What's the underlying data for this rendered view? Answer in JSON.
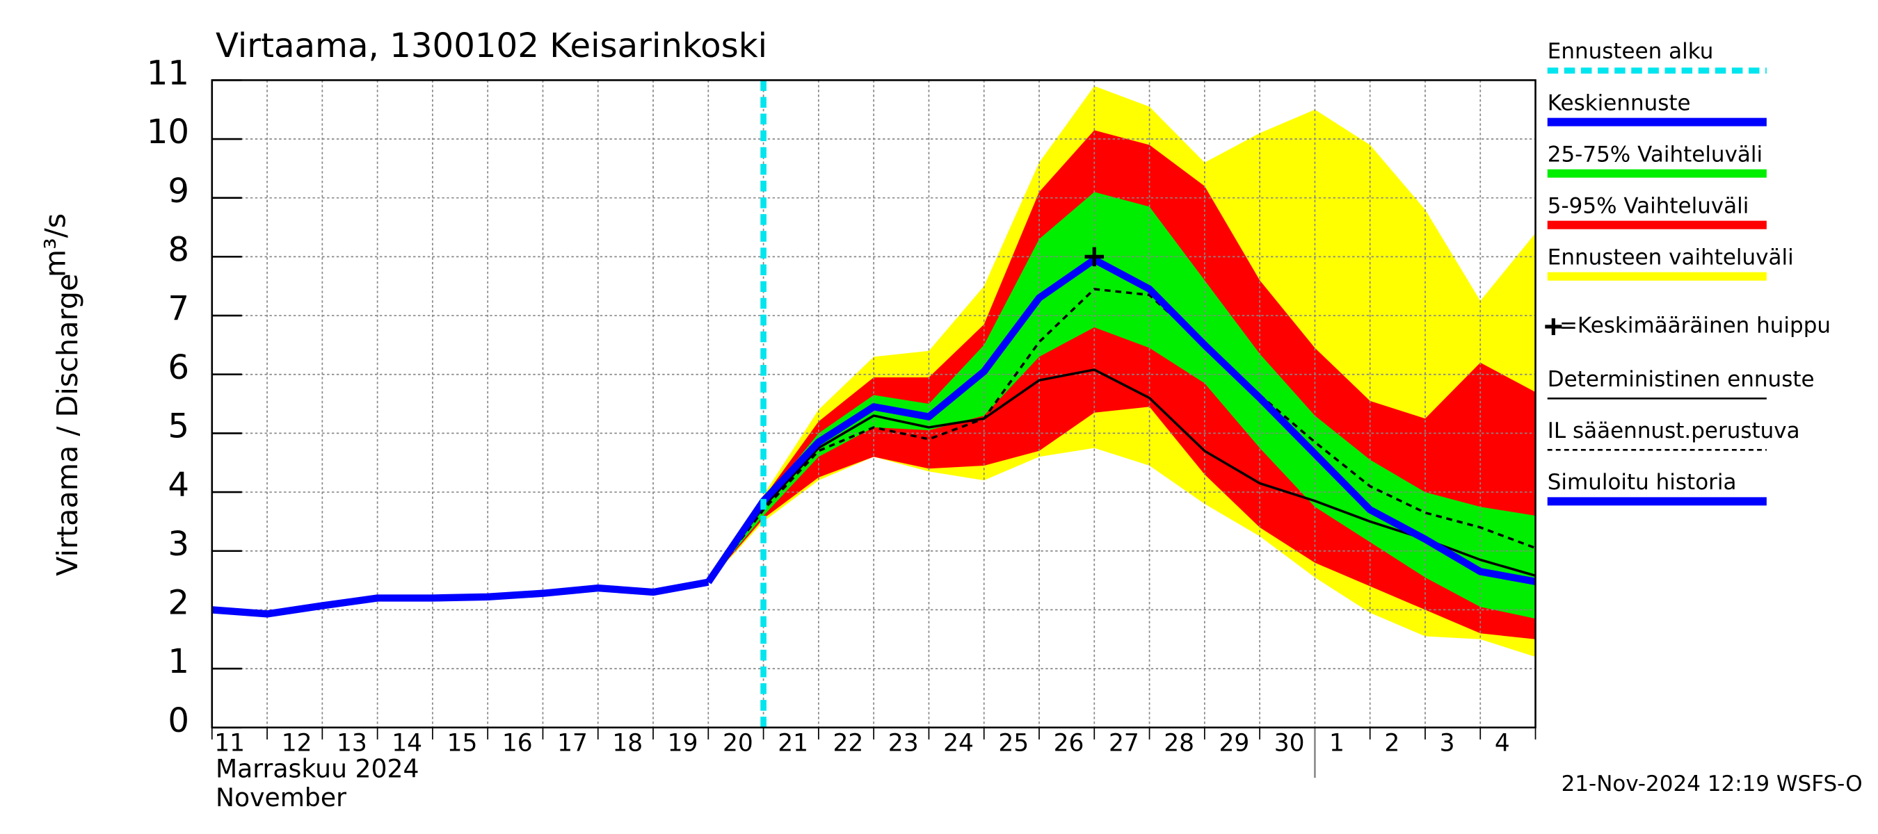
{
  "chart_data": {
    "type": "line",
    "title": "Virtaama, 1300102 Keisarinkoski",
    "y_label": "Virtaama / Discharge",
    "y_unit": "m³/s",
    "month_label": "Marraskuu 2024",
    "month_label_en": "November",
    "timestamp": "21-Nov-2024 12:19 WSFS-O",
    "categories": [
      "11",
      "12",
      "13",
      "14",
      "15",
      "16",
      "17",
      "18",
      "19",
      "20",
      "21",
      "22",
      "23",
      "24",
      "25",
      "26",
      "27",
      "28",
      "29",
      "30",
      "1",
      "2",
      "3",
      "4",
      null
    ],
    "month_break": "1",
    "ylim": [
      0,
      11
    ],
    "yticks": [
      0,
      1,
      2,
      3,
      4,
      5,
      6,
      7,
      8,
      9,
      10,
      11
    ],
    "grid": true,
    "forecast_start": {
      "name": "Ennusteen alku",
      "color": "#00e5ee",
      "category": "21"
    },
    "bands": [
      {
        "name": "25-75% Vaihteluväli",
        "color": "#00ee00",
        "low": [
          null,
          null,
          null,
          null,
          null,
          null,
          null,
          null,
          null,
          2.47,
          3.6,
          4.6,
          5.1,
          5.05,
          5.3,
          6.3,
          6.8,
          6.45,
          5.85,
          4.75,
          3.75,
          3.15,
          2.55,
          2.05,
          1.85
        ],
        "high": [
          null,
          null,
          null,
          null,
          null,
          null,
          null,
          null,
          null,
          2.47,
          3.85,
          5.0,
          5.65,
          5.5,
          6.5,
          8.3,
          9.1,
          8.85,
          7.6,
          6.35,
          5.3,
          4.55,
          4.0,
          3.75,
          3.6
        ]
      },
      {
        "name": "5-95% Vaihteluväli",
        "color": "#ff0000",
        "low": [
          null,
          null,
          null,
          null,
          null,
          null,
          null,
          null,
          null,
          2.47,
          3.55,
          4.25,
          4.6,
          4.4,
          4.45,
          4.7,
          5.35,
          5.45,
          4.3,
          3.4,
          2.8,
          2.4,
          2.0,
          1.6,
          1.5
        ],
        "high": [
          null,
          null,
          null,
          null,
          null,
          null,
          null,
          null,
          null,
          2.47,
          3.9,
          5.2,
          5.95,
          5.95,
          6.85,
          9.1,
          10.15,
          9.9,
          9.2,
          7.6,
          6.45,
          5.55,
          5.25,
          6.2,
          5.7
        ]
      },
      {
        "name": "Ennusteen vaihteluväli",
        "color": "#ffff00",
        "low": [
          null,
          null,
          null,
          null,
          null,
          null,
          null,
          null,
          null,
          2.47,
          3.5,
          4.2,
          4.6,
          4.35,
          4.2,
          4.6,
          4.75,
          4.45,
          3.8,
          3.25,
          2.55,
          1.95,
          1.55,
          1.5,
          1.2
        ],
        "high": [
          null,
          null,
          null,
          null,
          null,
          null,
          null,
          null,
          null,
          2.47,
          3.95,
          5.4,
          6.3,
          6.4,
          7.5,
          9.6,
          10.9,
          10.55,
          9.6,
          10.1,
          10.5,
          9.9,
          8.8,
          7.25,
          8.4
        ]
      }
    ],
    "peak": {
      "name": "=Keskimääräinen huippu",
      "category": "27",
      "value": 8.0
    },
    "series": [
      {
        "name": "Keskiennuste",
        "color": "#0000ff",
        "thick": true,
        "dashed": false,
        "values": [
          null,
          null,
          null,
          null,
          null,
          null,
          null,
          null,
          null,
          2.47,
          3.85,
          4.85,
          5.45,
          5.28,
          6.05,
          7.3,
          7.95,
          7.45,
          6.5,
          5.6,
          4.65,
          3.7,
          3.2,
          2.65,
          2.48
        ]
      },
      {
        "name": "Deterministinen ennuste",
        "color": "#000000",
        "thick": false,
        "dashed": false,
        "values": [
          null,
          null,
          null,
          null,
          null,
          null,
          null,
          null,
          null,
          2.47,
          3.75,
          4.75,
          5.3,
          5.1,
          5.25,
          5.9,
          6.08,
          5.6,
          4.7,
          4.15,
          3.85,
          3.5,
          3.2,
          2.85,
          2.58
        ]
      },
      {
        "name": "IL sääennust.perustuva",
        "color": "#000000",
        "thick": false,
        "dashed": true,
        "values": [
          null,
          null,
          null,
          null,
          null,
          null,
          null,
          null,
          null,
          2.47,
          3.7,
          4.7,
          5.1,
          4.9,
          5.25,
          6.55,
          7.45,
          7.35,
          6.5,
          5.65,
          4.85,
          4.1,
          3.65,
          3.4,
          3.05
        ]
      },
      {
        "name": "Simuloitu historia",
        "color": "#0000ff",
        "thick": true,
        "dashed": false,
        "values": [
          2.0,
          1.93,
          2.07,
          2.2,
          2.2,
          2.22,
          2.28,
          2.37,
          2.3,
          2.47,
          null,
          null,
          null,
          null,
          null,
          null,
          null,
          null,
          null,
          null,
          null,
          null,
          null,
          null,
          null
        ]
      }
    ]
  }
}
